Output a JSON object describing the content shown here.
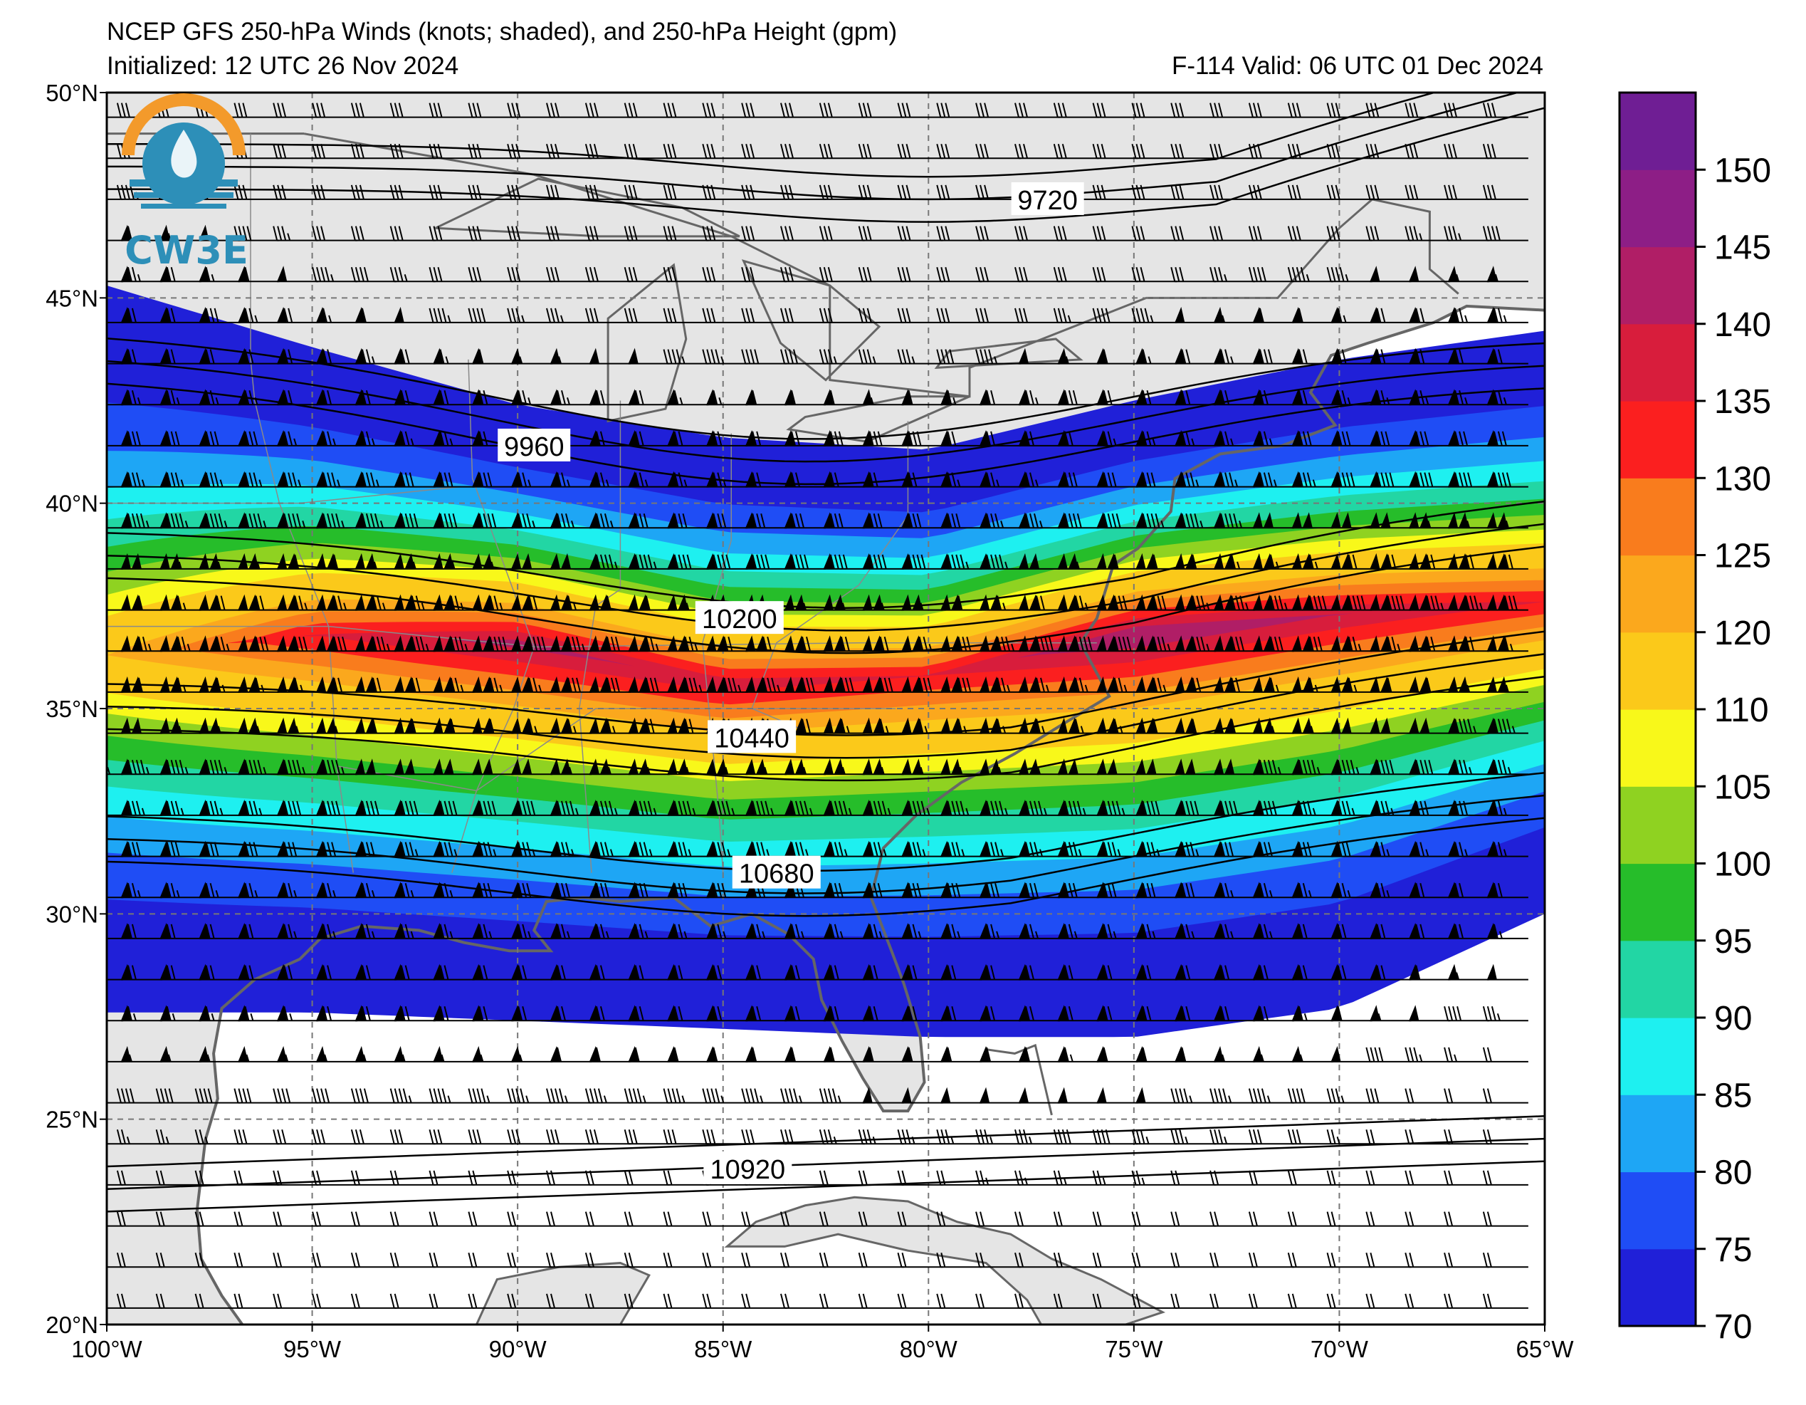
{
  "title": {
    "line1": "NCEP GFS 250-hPa Winds (knots; shaded), and 250-hPa Height (gpm)",
    "init": "Initialized: 12 UTC 26 Nov 2024",
    "valid": "F-114  Valid: 06 UTC 01 Dec 2024"
  },
  "logo": {
    "text": "CW3E"
  },
  "map": {
    "lon_range": [
      -100,
      -65
    ],
    "lat_range": [
      20,
      50
    ],
    "lon_ticks": [
      {
        "lon": -100,
        "label": "100°W"
      },
      {
        "lon": -95,
        "label": "95°W"
      },
      {
        "lon": -90,
        "label": "90°W"
      },
      {
        "lon": -85,
        "label": "85°W"
      },
      {
        "lon": -80,
        "label": "80°W"
      },
      {
        "lon": -75,
        "label": "75°W"
      },
      {
        "lon": -70,
        "label": "70°W"
      },
      {
        "lon": -65,
        "label": "65°W"
      }
    ],
    "lat_ticks": [
      {
        "lat": 20,
        "label": "20°N"
      },
      {
        "lat": 25,
        "label": "25°N"
      },
      {
        "lat": 30,
        "label": "30°N"
      },
      {
        "lat": 35,
        "label": "35°N"
      },
      {
        "lat": 40,
        "label": "40°N"
      },
      {
        "lat": 45,
        "label": "45°N"
      },
      {
        "lat": 50,
        "label": "50°N"
      }
    ],
    "land_color": "#e5e5e5",
    "ocean_color": "#ffffff",
    "coast_color": "#666666",
    "grid_color": "#777777"
  },
  "colorbar": {
    "levels": [
      70,
      75,
      80,
      85,
      90,
      95,
      100,
      105,
      110,
      120,
      125,
      130,
      135,
      140,
      145,
      150
    ],
    "top_level": 155,
    "tick_labels": [
      "70",
      "75",
      "80",
      "85",
      "90",
      "95",
      "100",
      "105",
      "110",
      "120",
      "125",
      "130",
      "135",
      "140",
      "145",
      "150"
    ],
    "colors": [
      "#2020d8",
      "#1f4df5",
      "#1ea6f5",
      "#1ef0f0",
      "#22d6a4",
      "#26bd2a",
      "#8fd221",
      "#f8f81a",
      "#fbc91a",
      "#fba81d",
      "#f97c1d",
      "#fb1f1f",
      "#d81d3c",
      "#b01e66",
      "#8d1e86",
      "#6f1e94"
    ]
  },
  "wind_band": {
    "description_levels_knots": "shaded wind speed",
    "axis_points": [
      {
        "lon": -100,
        "lat_n": 45.3,
        "lat_s": 27.6,
        "core_lat": 36.3,
        "core_speed": 120
      },
      {
        "lon": -95,
        "lat_n": 43.8,
        "lat_s": 27.6,
        "core_lat": 36.8,
        "core_speed": 135
      },
      {
        "lon": -90,
        "lat_n": 42.4,
        "lat_s": 27.4,
        "core_lat": 36.6,
        "core_speed": 142
      },
      {
        "lon": -85,
        "lat_n": 41.6,
        "lat_s": 27.2,
        "core_lat": 35.6,
        "core_speed": 138
      },
      {
        "lon": -80,
        "lat_n": 41.3,
        "lat_s": 27.0,
        "core_lat": 35.8,
        "core_speed": 135
      },
      {
        "lon": -75,
        "lat_n": 42.5,
        "lat_s": 27.0,
        "core_lat": 36.8,
        "core_speed": 145
      },
      {
        "lon": -70,
        "lat_n": 43.5,
        "lat_s": 27.7,
        "core_lat": 37.3,
        "core_speed": 140
      },
      {
        "lon": -65,
        "lat_n": 44.2,
        "lat_s": 30.0,
        "core_lat": 37.6,
        "core_speed": 135
      }
    ]
  },
  "height_contours": [
    {
      "value": 9720,
      "label": "9720",
      "label_lon": -77.1,
      "label_lat": 47.4
    },
    {
      "value": 9960,
      "label": "9960",
      "label_lon": -89.6,
      "label_lat": 41.4
    },
    {
      "value": 10200,
      "label": "10200",
      "label_lon": -84.6,
      "label_lat": 37.2
    },
    {
      "value": 10440,
      "label": "10440",
      "label_lon": -84.3,
      "label_lat": 34.3
    },
    {
      "value": 10680,
      "label": "10680",
      "label_lon": -83.7,
      "label_lat": 31.0
    },
    {
      "value": 10920,
      "label": "10920",
      "label_lon": -84.4,
      "label_lat": 23.8
    }
  ]
}
